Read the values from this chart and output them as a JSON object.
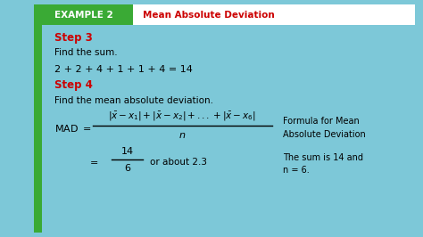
{
  "title_box_color": "#3aaa35",
  "title_box_text": "EXAMPLE 2",
  "title_text": "Mean Absolute Deviation",
  "title_text_color": "#cc0000",
  "title_box_text_color": "#ffffff",
  "bg_color": "#ffffff",
  "step3_label": "Step 3",
  "step3_desc": "Find the sum.",
  "step3_eq": "2 + 2 + 4 + 1 + 1 + 4 = 14",
  "step4_label": "Step 4",
  "step4_desc": "Find the mean absolute deviation.",
  "step_color": "#cc0000",
  "formula_note": "Formula for Mean\nAbsolute Deviation",
  "result_note": "The sum is 14 and\nn = 6.",
  "border_color": "#3aaa35",
  "outer_bg": "#7dc8d8",
  "text_color": "#000000"
}
